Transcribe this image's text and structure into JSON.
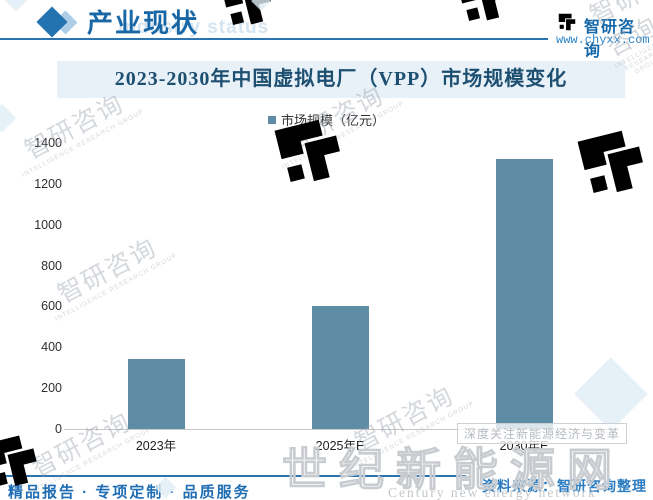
{
  "header": {
    "section_title": "产业现状",
    "watermark_text": "Industry status",
    "brand": {
      "name": "智研咨询",
      "url": "www.chyxx.com"
    }
  },
  "chart": {
    "title": "2023-2030年中国虚拟电厂（VPP）市场规模变化",
    "legend": "市场规模（亿元）"
  },
  "chart_data": {
    "type": "bar",
    "title": "2023-2030年中国虚拟电厂（VPP）市场规模变化",
    "categories": [
      "2023年",
      "2025年E",
      "2030年E"
    ],
    "series": [
      {
        "name": "市场规模（亿元）",
        "values": [
          345,
          600,
          1320
        ]
      }
    ],
    "xlabel": "",
    "ylabel": "",
    "ylim": [
      0,
      1400
    ],
    "ytick_step": 200,
    "grid": false,
    "legend_position": "top",
    "bar_color": "#5d8ca4"
  },
  "footer": {
    "left_text": "精品报告 · 专项定制 · 品质服务",
    "source_text": "资料来源：智研咨询整理"
  },
  "watermarks": {
    "diagonal_text": "智研咨询",
    "diagonal_subtext": "INTELLIGENCE RESEARCH GROUP",
    "boxed_text": "深度关注新能源经济与变革",
    "bottom_text": "世纪新能源网",
    "bottom_subtext": "Century new energy network"
  },
  "colors": {
    "accent_blue": "#2b74b0",
    "header_text": "#1766a5",
    "banner_bg": "#e8f1f8",
    "title_text": "#1d4f70",
    "bar": "#5d8ca4",
    "watermark_gray": "#c8ccd0",
    "watermark_blue": "#e7f0f8"
  }
}
